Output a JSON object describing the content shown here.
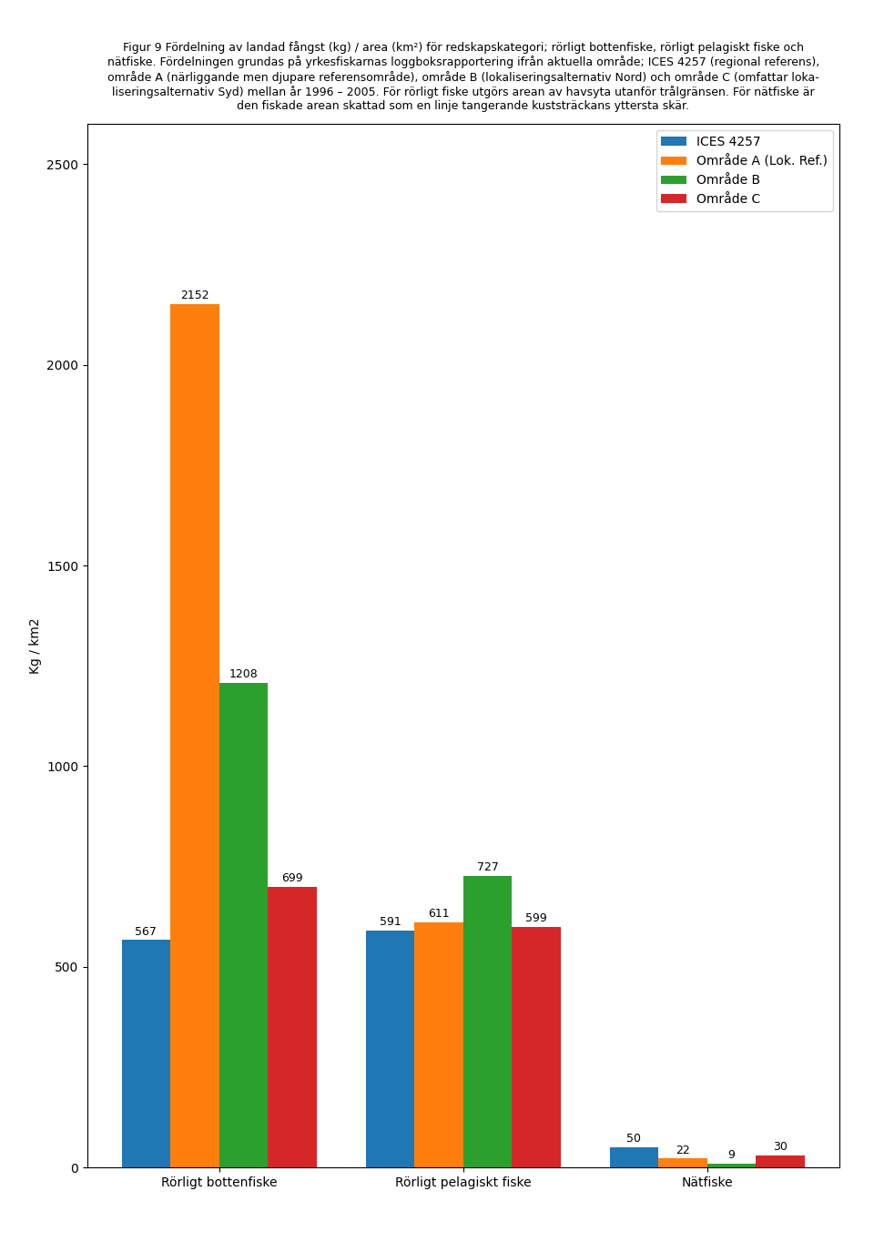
{
  "chart_data": {
    "type": "bar",
    "title": "Figur 9 Fördelning av landad fångst (kg) / area (km²) för redskapskategori; rörligt bottenfiske, rörligt pelagiskt fiske och\nnätfiske. Fördelningen grundas på yrkesfiskarnas loggboksrapportering ifrån aktuella område; ICES 4257 (regional referens),\nområde A (närliggande men djupare referensområde), område B (lokaliseringsalternativ Nord) och område C (omfattar loka-\nliseringsalternativ Syd) mellan år 1996 – 2005. För rörligt fiske utgörs arean av havsyta utanför trålgränsen. För nätfiske är\nden fiskade arean skattad som en linje tangerande kuststräckans yttersta skär.",
    "ylabel": "Kg / km2",
    "categories": [
      "Rörligt bottenfiske",
      "Rörligt pelagiskt fiske",
      "Nätfiske"
    ],
    "series": [
      {
        "name": "ICES 4257",
        "values": [
          567,
          591,
          50
        ]
      },
      {
        "name": "Område A (Lok. Ref.)",
        "values": [
          2152,
          611,
          22
        ]
      },
      {
        "name": "Område B",
        "values": [
          1208,
          727,
          9
        ]
      },
      {
        "name": "Område C",
        "values": [
          699,
          599,
          30
        ]
      }
    ],
    "ylim": [
      0,
      2600
    ],
    "yticks": [
      0,
      500,
      1000,
      1500,
      2000,
      2500
    ],
    "data_labels": true,
    "legend": "upper right"
  }
}
